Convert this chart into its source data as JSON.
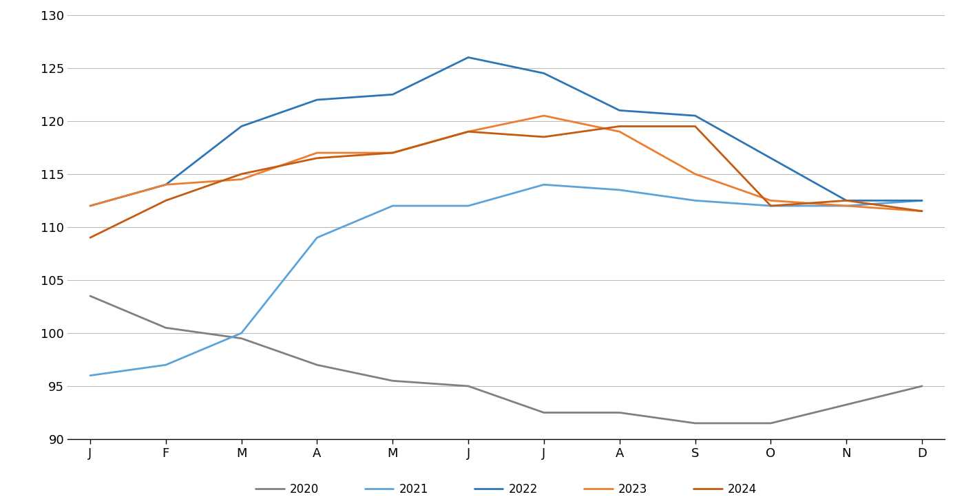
{
  "months": [
    "J",
    "F",
    "M",
    "A",
    "M",
    "J",
    "J",
    "A",
    "S",
    "O",
    "N",
    "D"
  ],
  "series": {
    "2020": [
      103.5,
      100.5,
      99.5,
      97.0,
      95.5,
      95.0,
      92.5,
      92.5,
      91.5,
      91.5,
      null,
      95.0
    ],
    "2021": [
      96.0,
      97.0,
      100.0,
      109.0,
      112.0,
      112.0,
      114.0,
      113.5,
      112.5,
      112.0,
      112.0,
      112.5
    ],
    "2022": [
      112.0,
      114.0,
      119.5,
      122.0,
      122.5,
      126.0,
      124.5,
      121.0,
      120.5,
      116.5,
      112.5,
      112.5
    ],
    "2023": [
      112.0,
      114.0,
      114.5,
      117.0,
      117.0,
      119.0,
      120.5,
      119.0,
      115.0,
      112.5,
      112.0,
      111.5
    ],
    "2024": [
      109.0,
      112.5,
      115.0,
      116.5,
      117.0,
      119.0,
      118.5,
      119.5,
      119.5,
      112.0,
      112.5,
      111.5
    ]
  },
  "colors": {
    "2020": "#808080",
    "2021": "#5BA3D9",
    "2022": "#2E75B6",
    "2023": "#ED7D31",
    "2024": "#C55A11"
  },
  "ylim": [
    90,
    130
  ],
  "yticks": [
    90,
    95,
    100,
    105,
    110,
    115,
    120,
    125,
    130
  ],
  "background_color": "#ffffff",
  "grid_color": "#BBBBBB",
  "legend_order": [
    "2020",
    "2021",
    "2022",
    "2023",
    "2024"
  ],
  "linewidth": 2.0,
  "tick_fontsize": 13,
  "legend_fontsize": 12
}
